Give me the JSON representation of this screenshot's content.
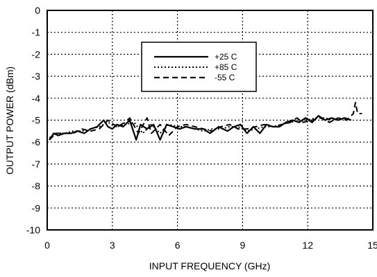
{
  "chart_data": {
    "type": "line",
    "xlabel": "INPUT FREQUENCY (GHz)",
    "ylabel": "OUTPUT POWER (dBm)",
    "xlim": [
      0,
      15
    ],
    "ylim": [
      -10,
      0
    ],
    "x_ticks": [
      "0",
      "3",
      "6",
      "9",
      "12",
      "15"
    ],
    "y_ticks": [
      "0",
      "-1",
      "-2",
      "-3",
      "-4",
      "-5",
      "-6",
      "-7",
      "-8",
      "-9",
      "-10"
    ],
    "grid": true,
    "legend_position": "top-center",
    "series": [
      {
        "name": "+25 C",
        "style": "solid",
        "x": [
          0.1,
          0.3,
          0.5,
          0.8,
          1.1,
          1.4,
          1.7,
          2.0,
          2.3,
          2.6,
          2.8,
          3.0,
          3.2,
          3.5,
          3.8,
          4.1,
          4.3,
          4.6,
          4.9,
          5.2,
          5.5,
          5.8,
          6.1,
          6.4,
          6.8,
          7.2,
          7.5,
          7.9,
          8.3,
          8.6,
          8.9,
          9.2,
          9.5,
          9.8,
          10.1,
          10.4,
          10.7,
          11.0,
          11.3,
          11.6,
          11.9,
          12.2,
          12.5,
          12.8,
          13.1,
          13.4,
          13.7,
          14.0
        ],
        "y": [
          -5.9,
          -5.6,
          -5.7,
          -5.6,
          -5.6,
          -5.5,
          -5.6,
          -5.4,
          -5.3,
          -5.0,
          -5.3,
          -5.4,
          -5.2,
          -5.3,
          -5.0,
          -5.9,
          -5.2,
          -5.4,
          -5.2,
          -5.9,
          -5.2,
          -5.3,
          -5.4,
          -5.3,
          -5.4,
          -5.4,
          -5.6,
          -5.3,
          -5.5,
          -5.3,
          -5.2,
          -5.6,
          -5.3,
          -5.6,
          -5.2,
          -5.3,
          -5.3,
          -5.1,
          -5.0,
          -5.1,
          -4.9,
          -5.1,
          -4.8,
          -5.0,
          -4.9,
          -5.0,
          -4.9,
          -5.0
        ]
      },
      {
        "name": "+85 C",
        "style": "dotted",
        "x": [
          0.1,
          0.4,
          0.8,
          1.2,
          1.6,
          2.0,
          2.4,
          2.8,
          3.2,
          3.6,
          4.0,
          4.4,
          4.8,
          5.2,
          5.6,
          6.0,
          6.4,
          6.8,
          7.2,
          7.6,
          8.0,
          8.4,
          8.8,
          9.2,
          9.6,
          10.0,
          10.4,
          10.8,
          11.2,
          11.6,
          12.0,
          12.4,
          12.8,
          13.2,
          13.6,
          14.0
        ],
        "y": [
          -5.8,
          -5.6,
          -5.6,
          -5.5,
          -5.5,
          -5.4,
          -5.3,
          -5.1,
          -5.3,
          -5.2,
          -5.1,
          -5.6,
          -5.2,
          -5.6,
          -5.2,
          -5.3,
          -5.3,
          -5.4,
          -5.5,
          -5.4,
          -5.4,
          -5.3,
          -5.3,
          -5.5,
          -5.4,
          -5.3,
          -5.3,
          -5.2,
          -5.1,
          -5.0,
          -5.0,
          -4.9,
          -4.9,
          -5.0,
          -4.9,
          -5.0
        ]
      },
      {
        "name": "-55 C",
        "style": "dashed",
        "x": [
          0.1,
          0.4,
          0.8,
          1.2,
          1.6,
          2.0,
          2.4,
          2.8,
          3.2,
          3.6,
          3.8,
          4.2,
          4.6,
          4.8,
          5.2,
          5.6,
          6.0,
          6.4,
          6.8,
          7.2,
          7.6,
          8.0,
          8.4,
          8.8,
          9.2,
          9.6,
          10.0,
          10.4,
          10.8,
          11.2,
          11.5,
          11.8,
          12.2,
          12.6,
          13.0,
          13.4,
          13.8,
          14.1,
          14.2,
          14.3,
          14.5
        ],
        "y": [
          -5.9,
          -5.6,
          -5.6,
          -5.6,
          -5.4,
          -5.5,
          -5.4,
          -5.0,
          -5.3,
          -5.1,
          -4.9,
          -5.6,
          -4.9,
          -5.6,
          -5.2,
          -5.7,
          -5.3,
          -5.2,
          -5.3,
          -5.4,
          -5.5,
          -5.3,
          -5.2,
          -5.4,
          -5.4,
          -5.3,
          -5.2,
          -5.3,
          -5.2,
          -5.1,
          -4.9,
          -5.1,
          -5.0,
          -4.9,
          -5.1,
          -4.9,
          -5.0,
          -4.7,
          -4.2,
          -4.7,
          -4.7
        ]
      }
    ]
  }
}
